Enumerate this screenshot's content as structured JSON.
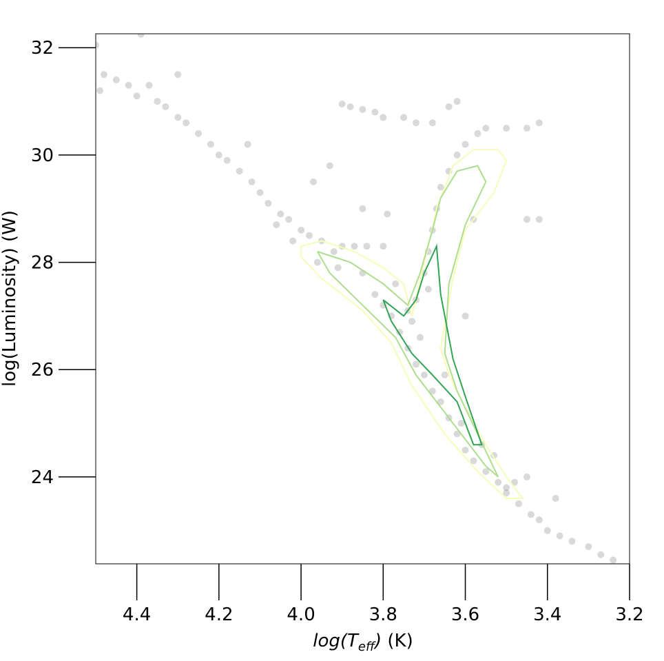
{
  "chart_data": {
    "type": "scatter",
    "xlabel_parts": [
      "log(T",
      "eff",
      ")",
      " (K)"
    ],
    "ylabel": "log(Luminosity) (W)",
    "xlim": [
      4.5,
      3.2
    ],
    "ylim": [
      22.38,
      32.26
    ],
    "xticks": [
      4.4,
      4.2,
      {
        "value": 4.0,
        "label": "4.0"
      },
      3.8,
      3.6,
      3.4,
      3.2
    ],
    "yticks": [
      24,
      26,
      28,
      30,
      32
    ],
    "color": "#000000",
    "x": [
      4.49,
      4.48,
      4.42,
      4.4,
      4.37,
      4.35,
      4.33,
      4.3,
      4.28,
      4.25,
      4.22,
      4.2,
      4.18,
      4.15,
      4.12,
      4.1,
      4.08,
      4.05,
      4.03,
      4.0,
      3.98,
      3.95,
      3.92,
      3.9,
      3.87,
      3.84,
      3.8,
      3.85,
      3.82,
      3.8,
      3.78,
      3.76,
      3.74,
      3.72,
      3.7,
      3.68,
      3.66,
      3.64,
      3.62,
      3.6,
      3.58,
      3.55,
      3.52,
      3.5,
      3.47,
      3.44,
      3.42,
      3.4,
      3.37,
      3.34,
      3.3,
      3.27,
      3.24,
      3.72,
      3.7,
      3.69,
      3.68,
      3.67,
      3.66,
      3.64,
      3.62,
      3.6,
      3.57,
      3.55,
      3.5,
      3.45,
      3.42,
      3.9,
      3.88,
      3.85,
      3.82,
      3.8,
      3.75,
      3.72,
      3.68,
      3.64,
      3.62,
      4.13,
      3.97,
      3.93,
      3.85,
      3.79,
      3.58,
      3.45,
      3.42,
      3.6,
      3.5,
      3.38,
      3.45,
      4.3,
      4.45,
      4.5,
      4.39,
      4.06,
      4.02,
      3.96,
      3.91,
      3.77,
      3.74,
      3.71,
      3.73,
      3.69,
      3.65,
      3.61,
      3.56,
      3.53,
      3.48
    ],
    "y": [
      31.2,
      31.5,
      31.3,
      31.1,
      31.3,
      31.0,
      30.9,
      30.7,
      30.6,
      30.4,
      30.2,
      30.0,
      29.9,
      29.7,
      29.5,
      29.3,
      29.1,
      28.9,
      28.8,
      28.6,
      28.5,
      28.4,
      28.2,
      28.3,
      28.3,
      28.3,
      28.3,
      27.8,
      27.4,
      27.2,
      27.0,
      26.7,
      26.4,
      26.1,
      25.9,
      25.6,
      25.4,
      25.1,
      24.8,
      24.5,
      24.3,
      24.1,
      23.9,
      23.7,
      23.5,
      23.3,
      23.2,
      23.0,
      22.9,
      22.8,
      22.7,
      22.55,
      22.45,
      27.3,
      27.8,
      28.2,
      28.6,
      29.0,
      29.4,
      29.7,
      30.0,
      30.2,
      30.4,
      30.5,
      30.5,
      30.5,
      30.6,
      30.95,
      30.9,
      30.85,
      30.8,
      30.7,
      30.7,
      30.6,
      30.6,
      30.9,
      31.0,
      30.2,
      29.5,
      29.8,
      29.0,
      28.9,
      28.8,
      28.8,
      28.8,
      27.0,
      23.8,
      23.6,
      24.0,
      31.5,
      31.4,
      32.05,
      32.25,
      28.7,
      28.4,
      28.0,
      27.9,
      27.6,
      27.1,
      26.6,
      26.9,
      27.5,
      25.9,
      25.0,
      24.6,
      24.4,
      23.9
    ],
    "contours": [
      {
        "color": "#f7fcb9",
        "x": [
          4.0,
          3.95,
          3.87,
          3.8,
          3.75,
          3.73,
          3.7,
          3.69,
          3.67,
          3.63,
          3.58,
          3.52,
          3.5,
          3.53,
          3.6,
          3.63,
          3.66,
          3.64,
          3.6,
          3.55,
          3.5,
          3.46,
          3.5,
          3.57,
          3.65,
          3.73,
          3.78,
          3.85,
          3.95,
          4.0,
          4.0
        ],
        "y": [
          28.3,
          28.4,
          28.2,
          27.9,
          27.6,
          27.0,
          28.0,
          28.3,
          29.0,
          29.8,
          30.1,
          30.1,
          29.9,
          29.3,
          28.6,
          27.7,
          26.4,
          25.9,
          25.3,
          24.6,
          24.0,
          23.6,
          23.6,
          24.1,
          24.8,
          25.7,
          26.5,
          27.1,
          27.7,
          28.1,
          28.3
        ]
      },
      {
        "color": "#addd8e",
        "x": [
          3.96,
          3.88,
          3.8,
          3.74,
          3.71,
          3.68,
          3.66,
          3.62,
          3.57,
          3.55,
          3.6,
          3.64,
          3.65,
          3.62,
          3.57,
          3.52,
          3.55,
          3.63,
          3.72,
          3.77,
          3.85,
          3.93,
          3.96
        ],
        "y": [
          28.2,
          28.0,
          27.6,
          27.2,
          27.8,
          28.6,
          29.2,
          29.7,
          29.8,
          29.5,
          28.7,
          27.6,
          26.3,
          25.6,
          24.8,
          24.0,
          24.2,
          25.0,
          25.9,
          26.6,
          27.2,
          27.8,
          28.2
        ]
      },
      {
        "color": "#31a354",
        "x": [
          3.8,
          3.75,
          3.72,
          3.7,
          3.67,
          3.66,
          3.63,
          3.6,
          3.56,
          3.58,
          3.62,
          3.68,
          3.73,
          3.78,
          3.8
        ],
        "y": [
          27.3,
          27.0,
          27.3,
          27.8,
          28.3,
          27.4,
          26.2,
          25.5,
          24.6,
          24.6,
          25.4,
          25.9,
          26.3,
          26.9,
          27.3
        ]
      }
    ]
  }
}
